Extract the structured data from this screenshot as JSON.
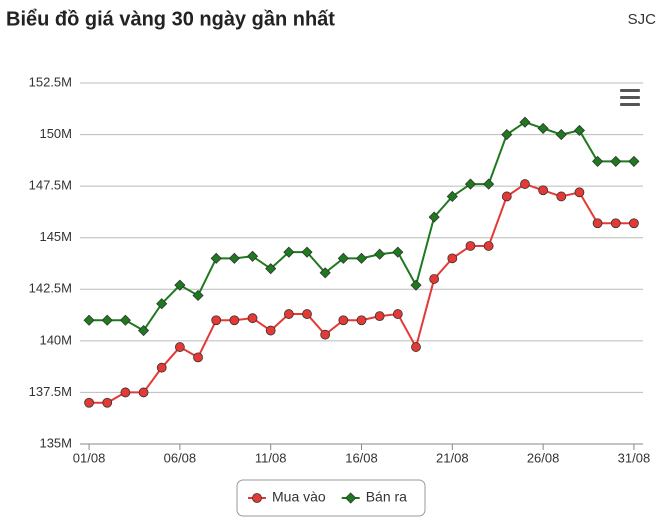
{
  "chart_data": {
    "type": "line",
    "title": "Biểu đồ giá vàng 30 ngày gần nhất",
    "subtitle": "SJC",
    "categories": [
      "01/08",
      null,
      null,
      null,
      null,
      "06/08",
      null,
      null,
      null,
      null,
      "11/08",
      null,
      null,
      null,
      null,
      "16/08",
      null,
      null,
      null,
      null,
      "21/08",
      null,
      null,
      null,
      null,
      "26/08",
      null,
      null,
      null,
      null,
      "31/08"
    ],
    "series": [
      {
        "name": "Mua vào",
        "color": "#e53935",
        "marker": "circle",
        "values": [
          137,
          137,
          137.5,
          137.5,
          138.7,
          139.7,
          139.2,
          141,
          141,
          141.1,
          140.5,
          141.3,
          141.3,
          140.3,
          141,
          141,
          141.2,
          141.3,
          139.7,
          143,
          144,
          144.6,
          144.6,
          147,
          147.6,
          147.3,
          147,
          147.2,
          145.7,
          145.7,
          145.7
        ]
      },
      {
        "name": "Bán ra",
        "color": "#1e7a1e",
        "marker": "diamond",
        "values": [
          141,
          141,
          141,
          140.5,
          141.8,
          142.7,
          142.2,
          144,
          144,
          144.1,
          143.5,
          144.3,
          144.3,
          143.3,
          144,
          144,
          144.2,
          144.3,
          142.7,
          146,
          147,
          147.6,
          147.6,
          150,
          150.6,
          150.3,
          150,
          150.2,
          148.7,
          148.7,
          148.7
        ]
      }
    ],
    "ylim": [
      135,
      152.5
    ],
    "yticks": [
      {
        "value": 135,
        "label": "135M"
      },
      {
        "value": 137.5,
        "label": "137.5M"
      },
      {
        "value": 140,
        "label": "140M"
      },
      {
        "value": 142.5,
        "label": "142.5M"
      },
      {
        "value": 145,
        "label": "145M"
      },
      {
        "value": 147.5,
        "label": "147.5M"
      },
      {
        "value": 150,
        "label": "150M"
      },
      {
        "value": 152.5,
        "label": "152.5M"
      }
    ],
    "grid": true,
    "legend": "bottom"
  }
}
